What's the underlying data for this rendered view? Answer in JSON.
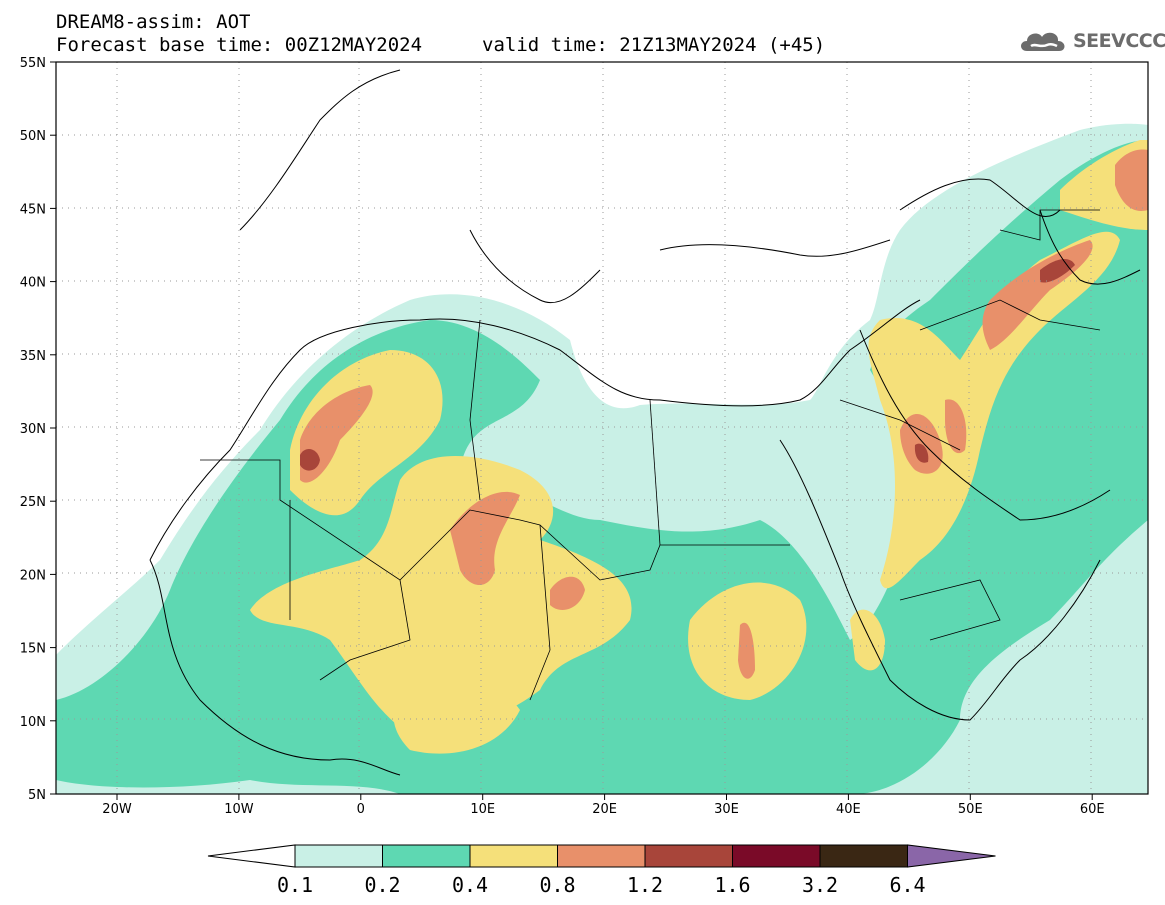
{
  "header": {
    "line1": "DREAM8-assim: AOT",
    "line2": "Forecast base time: 00Z12MAY2024",
    "valid": "valid time: 21Z13MAY2024 (+45)"
  },
  "logo": {
    "text": "SEEVCCC",
    "icon": "cloud-icon"
  },
  "map": {
    "lat_labels": [
      "55N",
      "50N",
      "45N",
      "40N",
      "35N",
      "30N",
      "25N",
      "20N",
      "15N",
      "10N",
      "5N"
    ],
    "lon_labels": [
      "20W",
      "10W",
      "0",
      "10E",
      "20E",
      "30E",
      "40E",
      "50E",
      "60E"
    ],
    "grid": true
  },
  "legend": {
    "ticks": [
      "0.1",
      "0.2",
      "0.4",
      "0.8",
      "1.2",
      "1.6",
      "3.2",
      "6.4"
    ],
    "colors": [
      "#ffffff",
      "#c9f0e6",
      "#5ed8b2",
      "#f5e07a",
      "#e8906a",
      "#a8453a",
      "#7a0a28",
      "#3a2714",
      "#8a66a8"
    ]
  }
}
